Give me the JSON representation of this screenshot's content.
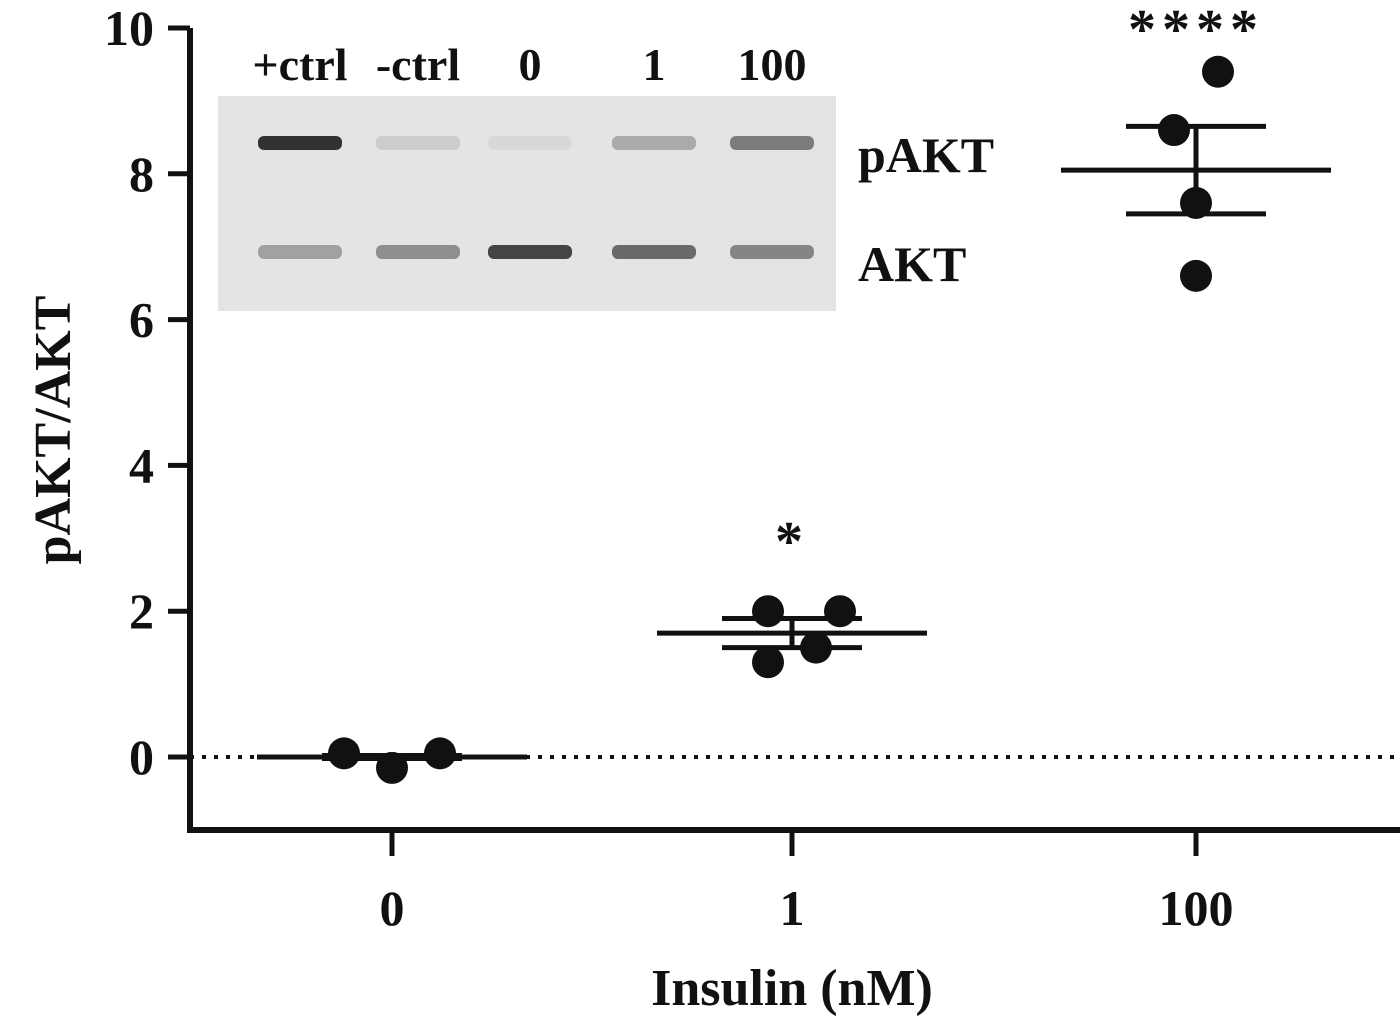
{
  "chart_data": {
    "type": "scatter",
    "xlabel": "Insulin (nM)",
    "ylabel": "pAKT/AKT",
    "ylim": [
      -1,
      10
    ],
    "y_ticks": [
      "0",
      "2",
      "4",
      "6",
      "8",
      "10"
    ],
    "categories": [
      "0",
      "1",
      "100"
    ],
    "reference_line": {
      "y": 0,
      "style": "dotted"
    },
    "groups": [
      {
        "category": "0",
        "points": [
          0.05,
          -0.15,
          0.05
        ],
        "mean": 0.0,
        "sem_low": -0.02,
        "sem_high": 0.02,
        "significance": ""
      },
      {
        "category": "1",
        "points": [
          2.0,
          1.3,
          1.5,
          2.0
        ],
        "mean": 1.7,
        "sem_low": 1.5,
        "sem_high": 1.9,
        "significance": "*"
      },
      {
        "category": "100",
        "points": [
          9.4,
          8.6,
          7.6,
          6.6
        ],
        "mean": 8.05,
        "sem_low": 7.45,
        "sem_high": 8.65,
        "significance": "****"
      }
    ],
    "grid": false,
    "legend": "none"
  },
  "inset_blot": {
    "lane_labels": [
      "+ctrl",
      "-ctrl",
      "0",
      "1",
      "100"
    ],
    "band_labels": [
      "pAKT",
      "AKT"
    ],
    "pakt_intensity": [
      0.95,
      0.12,
      0.05,
      0.3,
      0.55
    ],
    "akt_intensity": [
      0.35,
      0.45,
      0.85,
      0.65,
      0.5
    ]
  }
}
